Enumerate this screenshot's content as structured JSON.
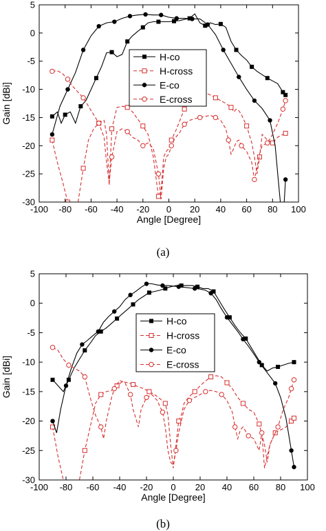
{
  "chart_data": [
    {
      "type": "line",
      "caption": "(a)",
      "xlabel": "Angle [Degree]",
      "ylabel": "Gain [dBi]",
      "xlim": [
        -100,
        100
      ],
      "ylim": [
        -30,
        5
      ],
      "xticks": [
        -100,
        -80,
        -60,
        -40,
        -20,
        0,
        20,
        40,
        60,
        80,
        100
      ],
      "yticks": [
        5,
        0,
        -5,
        -10,
        -15,
        -20,
        -25,
        -30
      ],
      "legend_position": "upper-center",
      "series": [
        {
          "name": "H-co",
          "color": "#000000",
          "dash": "solid",
          "marker": "filled-square",
          "x": [
            -90,
            -86,
            -83,
            -80,
            -76,
            -72,
            -68,
            -64,
            -60,
            -56,
            -52,
            -48,
            -44,
            -40,
            -36,
            -32,
            -28,
            -24,
            -20,
            -16,
            -12,
            -8,
            -4,
            0,
            4,
            8,
            12,
            16,
            20,
            24,
            28,
            32,
            36,
            40,
            44,
            48,
            52,
            56,
            60,
            64,
            68,
            72,
            76,
            80,
            84,
            88,
            90
          ],
          "y": [
            -14.8,
            -14,
            -16,
            -14.5,
            -14,
            -16,
            -13,
            -12,
            -10,
            -8,
            -6,
            -3.5,
            -3.4,
            -4.2,
            -3.8,
            -1.5,
            -0.5,
            0.3,
            1,
            1.8,
            2,
            2,
            2,
            2,
            2.1,
            2.2,
            2.4,
            2.6,
            3.4,
            1.8,
            1.3,
            1.8,
            1.5,
            1.6,
            1,
            -1.5,
            -3,
            -4,
            -4.8,
            -6,
            -6.8,
            -7.4,
            -8,
            -8.5,
            -9,
            -10.5,
            -11
          ]
        },
        {
          "name": "H-cross",
          "color": "#d62d2d",
          "dash": "dashed",
          "marker": "open-square",
          "x": [
            -90,
            -86,
            -82,
            -78,
            -74,
            -70,
            -66,
            -62,
            -58,
            -54,
            -50,
            -48,
            -46,
            -44,
            -40,
            -36,
            -32,
            -28,
            -24,
            -20,
            -16,
            -12,
            -8,
            -6,
            -4,
            -2,
            0,
            2,
            4,
            6,
            8,
            12,
            16,
            20,
            24,
            28,
            32,
            36,
            40,
            44,
            48,
            50,
            52,
            54,
            56,
            60,
            64,
            66,
            68,
            70,
            72,
            76,
            80,
            84,
            88,
            90
          ],
          "y": [
            -19,
            -23,
            -26.3,
            -30,
            -33,
            -30,
            -24,
            -19,
            -17,
            -16,
            -15.5,
            -18,
            -27,
            -17,
            -13.2,
            -13,
            -13.2,
            -14,
            -15.3,
            -16.5,
            -18,
            -22,
            -29,
            -28,
            -22,
            -21,
            -20.5,
            -19,
            -18,
            -17,
            -15.8,
            -13.5,
            -12,
            -11.2,
            -11,
            -10.6,
            -11,
            -11.5,
            -12,
            -12.5,
            -13.2,
            -14,
            -13.5,
            -13.8,
            -14.5,
            -16.5,
            -19.5,
            -22,
            -25,
            -22,
            -18,
            -19,
            -19.5,
            -18.5,
            -18,
            -17.8
          ]
        },
        {
          "name": "E-co",
          "color": "#000000",
          "dash": "solid",
          "marker": "filled-circle",
          "x": [
            -90,
            -84,
            -78,
            -72,
            -66,
            -60,
            -54,
            -48,
            -42,
            -36,
            -30,
            -24,
            -18,
            -12,
            -6,
            0,
            6,
            12,
            18,
            24,
            30,
            36,
            42,
            48,
            54,
            60,
            66,
            72,
            78,
            82,
            84,
            86,
            88,
            90
          ],
          "y": [
            -18,
            -13,
            -10,
            -7,
            -3,
            -0.5,
            1.2,
            1.8,
            2,
            2.6,
            3,
            3.2,
            3.3,
            3.2,
            3.2,
            2.8,
            2.6,
            2.6,
            2.5,
            2.5,
            1.5,
            -0.3,
            -3,
            -5.4,
            -7.8,
            -10,
            -12,
            -13.4,
            -15.5,
            -20,
            -25,
            -30,
            -34,
            -26
          ]
        },
        {
          "name": "E-cross",
          "color": "#d62d2d",
          "dash": "dashed",
          "marker": "open-circle",
          "x": [
            -90,
            -86,
            -82,
            -78,
            -74,
            -70,
            -66,
            -62,
            -58,
            -54,
            -50,
            -48,
            -46,
            -44,
            -40,
            -36,
            -32,
            -28,
            -24,
            -20,
            -16,
            -12,
            -8,
            -6,
            -4,
            -2,
            0,
            2,
            4,
            6,
            8,
            12,
            16,
            20,
            24,
            28,
            32,
            36,
            40,
            44,
            46,
            48,
            50,
            52,
            54,
            56,
            60,
            64,
            66,
            68,
            70,
            72,
            76,
            80,
            84,
            88,
            90
          ],
          "y": [
            -6.8,
            -6.7,
            -7.2,
            -8.2,
            -9.5,
            -10.5,
            -11.5,
            -13,
            -14.5,
            -16,
            -18.5,
            -23,
            -26.5,
            -22,
            -17.5,
            -17,
            -17.5,
            -18.5,
            -19,
            -20,
            -19.5,
            -20.5,
            -25,
            -29.5,
            -24,
            -22,
            -21.5,
            -20,
            -19,
            -18.3,
            -17.8,
            -16.2,
            -15.5,
            -15.2,
            -15,
            -14.8,
            -14.6,
            -15,
            -15.5,
            -17,
            -19,
            -21.5,
            -20.5,
            -19.3,
            -19,
            -20,
            -21,
            -23,
            -26,
            -24,
            -21.5,
            -20,
            -19.5,
            -18,
            -16,
            -13.5,
            -12
          ]
        }
      ]
    },
    {
      "type": "line",
      "caption": "(b)",
      "xlabel": "Angle [Degree]",
      "ylabel": "Gain [dBi]",
      "xlim": [
        -100,
        100
      ],
      "ylim": [
        -30,
        5
      ],
      "xticks": [
        -100,
        -80,
        -60,
        -40,
        -20,
        0,
        20,
        40,
        60,
        80,
        100
      ],
      "yticks": [
        5,
        0,
        -5,
        -10,
        -15,
        -20,
        -25,
        -30
      ],
      "legend_position": "center-right",
      "series": [
        {
          "name": "H-co",
          "color": "#000000",
          "dash": "solid",
          "marker": "filled-square",
          "x": [
            -90,
            -86,
            -82,
            -78,
            -74,
            -70,
            -66,
            -62,
            -58,
            -54,
            -50,
            -46,
            -42,
            -38,
            -34,
            -30,
            -26,
            -22,
            -18,
            -14,
            -10,
            -6,
            -2,
            2,
            6,
            10,
            14,
            18,
            22,
            26,
            30,
            34,
            38,
            42,
            46,
            50,
            54,
            58,
            62,
            66,
            70,
            74,
            78,
            82,
            86,
            90
          ],
          "y": [
            -13,
            -14,
            -15,
            -13,
            -11,
            -9.5,
            -8,
            -6.8,
            -5.5,
            -4.8,
            -4.2,
            -3.4,
            -2.6,
            -1.8,
            -1,
            -0.2,
            0.6,
            1.2,
            1.8,
            2,
            2.2,
            2.5,
            2.8,
            3,
            3,
            3,
            3,
            2.8,
            2.5,
            2.5,
            2,
            0.5,
            -1,
            -2.4,
            -3.8,
            -5,
            -6,
            -7.5,
            -9,
            -10.5,
            -11.5,
            -11,
            -10.8,
            -10.5,
            -10.2,
            -10
          ]
        },
        {
          "name": "H-cross",
          "color": "#d62d2d",
          "dash": "dashed",
          "marker": "open-square",
          "x": [
            -90,
            -86,
            -82,
            -78,
            -74,
            -70,
            -66,
            -62,
            -58,
            -54,
            -50,
            -46,
            -42,
            -38,
            -34,
            -30,
            -26,
            -22,
            -18,
            -14,
            -10,
            -6,
            -4,
            -2,
            0,
            2,
            4,
            6,
            8,
            12,
            16,
            20,
            24,
            28,
            32,
            36,
            40,
            44,
            48,
            52,
            56,
            60,
            64,
            68,
            70,
            72,
            76,
            80,
            84,
            88,
            90
          ],
          "y": [
            -21,
            -26,
            -30,
            -33,
            -31,
            -30,
            -25,
            -21,
            -17,
            -15.5,
            -15,
            -14.8,
            -14,
            -13.3,
            -13.5,
            -13.8,
            -14.2,
            -14.5,
            -15,
            -15.5,
            -16.2,
            -17,
            -19,
            -24,
            -28,
            -24,
            -20,
            -19,
            -17,
            -15.8,
            -15,
            -14,
            -13.2,
            -12.5,
            -12.3,
            -12.5,
            -13.5,
            -14.5,
            -16,
            -17,
            -18,
            -18.5,
            -20.5,
            -24,
            -27,
            -24,
            -22,
            -21.5,
            -21,
            -20,
            -19.5
          ]
        },
        {
          "name": "E-co",
          "color": "#000000",
          "dash": "solid",
          "marker": "filled-circle",
          "x": [
            -90,
            -87,
            -84,
            -80,
            -76,
            -72,
            -68,
            -64,
            -60,
            -56,
            -52,
            -48,
            -44,
            -40,
            -36,
            -32,
            -28,
            -24,
            -20,
            -16,
            -12,
            -8,
            -4,
            0,
            4,
            8,
            12,
            16,
            20,
            24,
            28,
            32,
            36,
            40,
            44,
            48,
            52,
            56,
            60,
            64,
            68,
            72,
            76,
            80,
            84,
            88,
            90
          ],
          "y": [
            -20,
            -22,
            -18,
            -14,
            -11,
            -8.5,
            -7,
            -6.3,
            -5.5,
            -4.8,
            -3.2,
            -2.2,
            -1.4,
            -0.6,
            0.6,
            1.4,
            2,
            2.7,
            3.3,
            3.3,
            3.1,
            3,
            3,
            2.9,
            2.8,
            2.7,
            2.6,
            2.5,
            2.4,
            2.2,
            1.7,
            0.6,
            -1,
            -2.4,
            -3.6,
            -4.8,
            -6.1,
            -7.3,
            -8.6,
            -10,
            -11.2,
            -12.4,
            -13.6,
            -16,
            -19.5,
            -25,
            -27.8
          ]
        },
        {
          "name": "E-cross",
          "color": "#d62d2d",
          "dash": "dashed",
          "marker": "open-circle",
          "x": [
            -90,
            -86,
            -82,
            -78,
            -74,
            -70,
            -66,
            -62,
            -58,
            -54,
            -52,
            -50,
            -48,
            -46,
            -44,
            -40,
            -36,
            -32,
            -30,
            -28,
            -26,
            -24,
            -20,
            -16,
            -12,
            -8,
            -6,
            -4,
            -2,
            0,
            2,
            4,
            6,
            8,
            12,
            16,
            20,
            24,
            28,
            32,
            36,
            40,
            44,
            46,
            48,
            50,
            52,
            56,
            60,
            64,
            66,
            68,
            70,
            72,
            74,
            78,
            82,
            86,
            88,
            90
          ],
          "y": [
            -7.5,
            -8,
            -9.5,
            -10.5,
            -11,
            -11.5,
            -12.5,
            -16,
            -19,
            -21,
            -23,
            -20,
            -18,
            -16,
            -14.5,
            -13.1,
            -13.5,
            -15.5,
            -18,
            -19.5,
            -21,
            -18,
            -16,
            -15.5,
            -16.5,
            -18.5,
            -21,
            -25,
            -27,
            -27.5,
            -25,
            -22,
            -20,
            -18,
            -16.5,
            -16,
            -15.5,
            -15,
            -14.8,
            -15,
            -15.5,
            -16.5,
            -18.5,
            -21,
            -23,
            -21.5,
            -21,
            -22.5,
            -23,
            -25,
            -22,
            -28,
            -26,
            -24,
            -23,
            -21,
            -18,
            -16,
            -14.5,
            -13
          ]
        }
      ]
    }
  ]
}
